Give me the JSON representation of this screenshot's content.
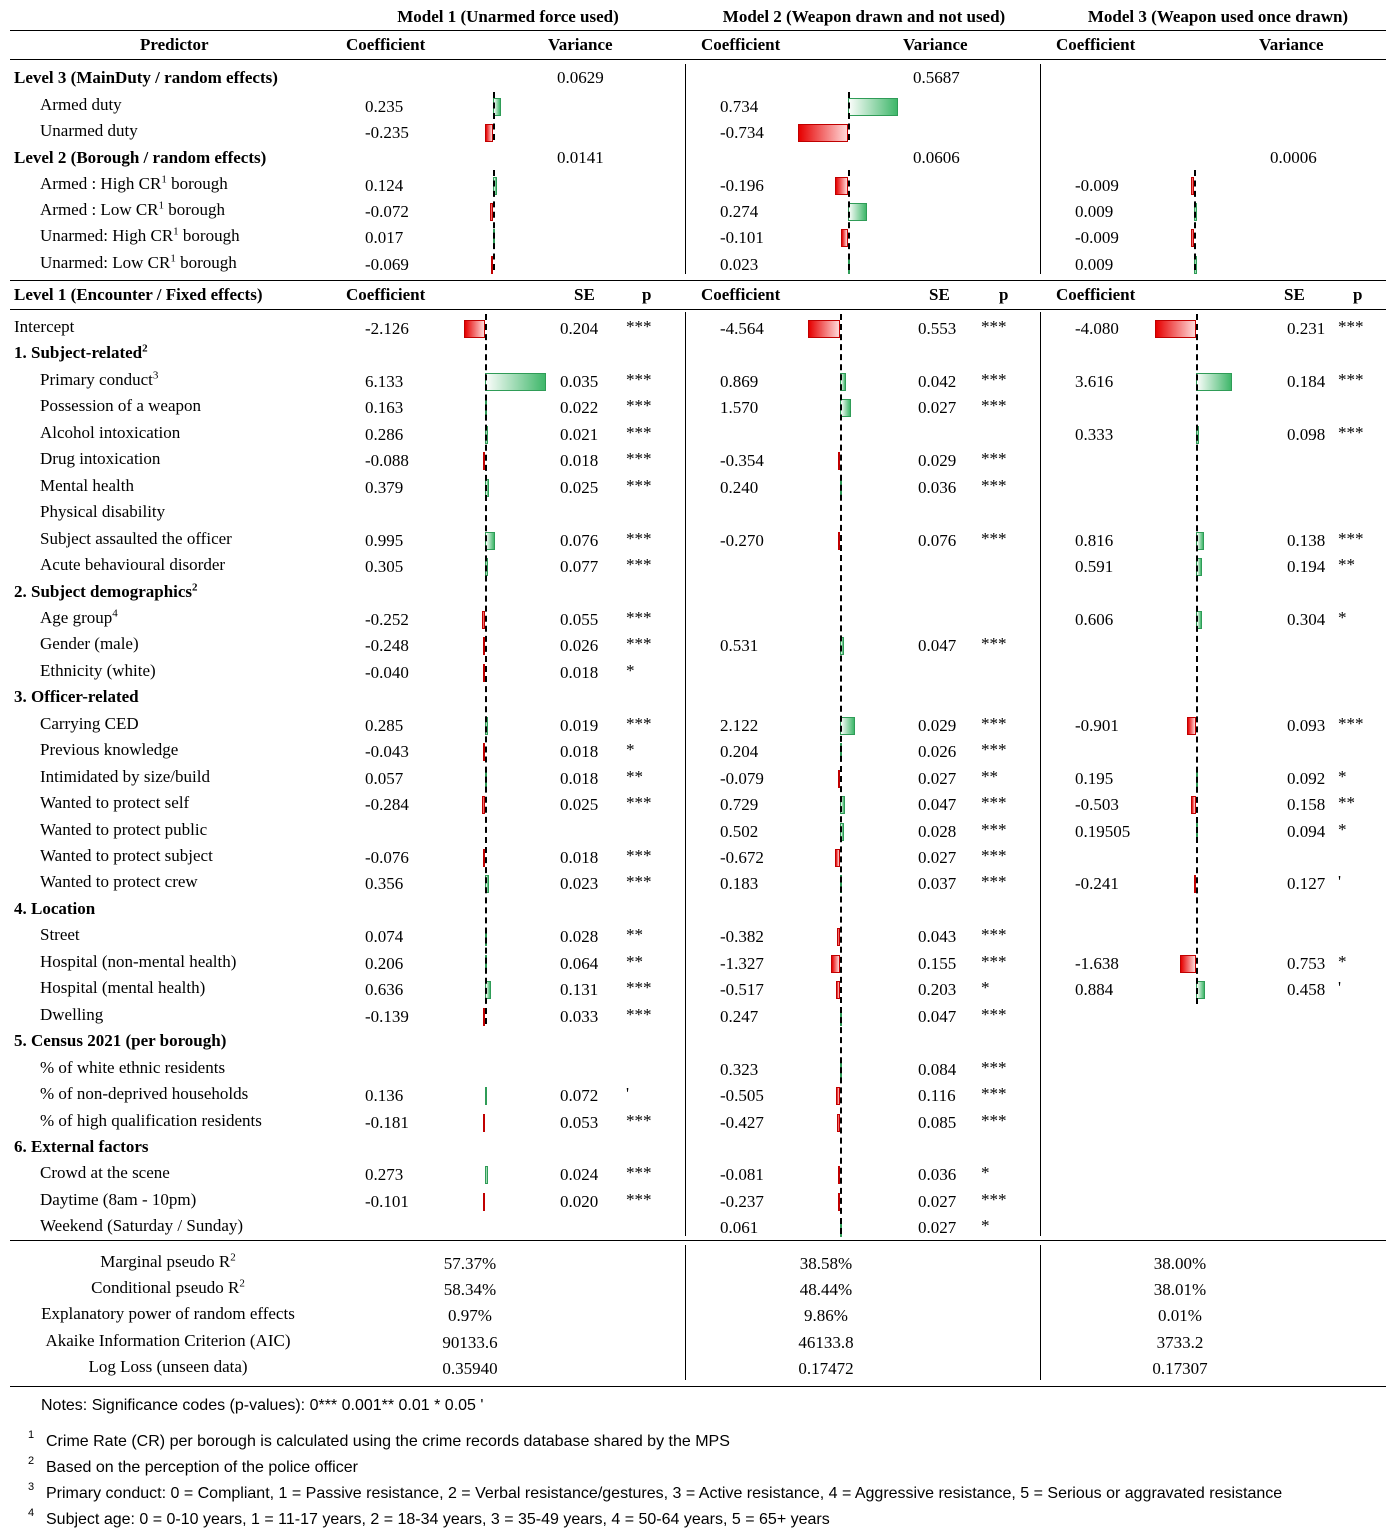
{
  "models": [
    {
      "title": "Model 1 (Unarmed force used)",
      "coef_label": "Coefficient",
      "var_label": "Variance",
      "se_label": "SE",
      "p_label": "p"
    },
    {
      "title": "Model 2 (Weapon drawn and not used)",
      "coef_label": "Coefficient",
      "var_label": "Variance",
      "se_label": "SE",
      "p_label": "p"
    },
    {
      "title": "Model 3 (Weapon used once drawn)",
      "coef_label": "Coefficient",
      "var_label": "Variance",
      "se_label": "SE",
      "p_label": "p"
    }
  ],
  "predictor_header": "Predictor",
  "level3": {
    "title": "Level 3 (MainDuty / random effects)",
    "variances": [
      "0.0629",
      "0.5687",
      ""
    ]
  },
  "level2": {
    "title": "Level 2 (Borough / random effects)",
    "variances": [
      "0.0141",
      "0.0606",
      "0.0006"
    ]
  },
  "level1": {
    "title": "Level 1 (Encounter / Fixed effects)"
  },
  "random_rows": [
    {
      "label": "Armed duty",
      "sup": "",
      "vals": [
        [
          "0.235",
          0.235
        ],
        [
          "0.734",
          0.734
        ],
        [
          "",
          null
        ]
      ]
    },
    {
      "label": "Unarmed duty",
      "sup": "",
      "vals": [
        [
          "-0.235",
          -0.235
        ],
        [
          "-0.734",
          -0.734
        ],
        [
          "",
          null
        ]
      ]
    },
    {
      "group": "Level 2 (Borough / random effects)"
    },
    {
      "label": "Armed : High CR",
      "sup": "1",
      "suffix": " borough",
      "vals": [
        [
          "0.124",
          0.124
        ],
        [
          "-0.196",
          -0.196
        ],
        [
          "-0.009",
          -0.009
        ]
      ]
    },
    {
      "label": "Armed : Low CR",
      "sup": "1",
      "suffix": " borough",
      "vals": [
        [
          "-0.072",
          -0.072
        ],
        [
          "0.274",
          0.274
        ],
        [
          "0.009",
          0.009
        ]
      ]
    },
    {
      "label": "Unarmed: High CR",
      "sup": "1",
      "suffix": " borough",
      "vals": [
        [
          "0.017",
          0.017
        ],
        [
          "-0.101",
          -0.101
        ],
        [
          "-0.009",
          -0.009
        ]
      ]
    },
    {
      "label": "Unarmed: Low CR",
      "sup": "1",
      "suffix": " borough",
      "vals": [
        [
          "-0.069",
          -0.069
        ],
        [
          "0.023",
          0.023
        ],
        [
          "0.009",
          0.009
        ]
      ]
    }
  ],
  "fixed_rows": [
    {
      "label": "Intercept",
      "indent": false,
      "m": [
        [
          "-2.126",
          "0.204",
          "***"
        ],
        [
          "-4.564",
          "0.553",
          "***"
        ],
        [
          "-4.080",
          "0.231",
          "***"
        ]
      ]
    },
    {
      "section": "1. Subject-related",
      "sup": "2"
    },
    {
      "label": "Primary conduct",
      "sup": "3",
      "m": [
        [
          "6.133",
          "0.035",
          "***"
        ],
        [
          "0.869",
          "0.042",
          "***"
        ],
        [
          "3.616",
          "0.184",
          "***"
        ]
      ]
    },
    {
      "label": "Possession of a weapon",
      "m": [
        [
          "0.163",
          "0.022",
          "***"
        ],
        [
          "1.570",
          "0.027",
          "***"
        ],
        [
          "",
          "",
          ""
        ]
      ]
    },
    {
      "label": "Alcohol intoxication",
      "m": [
        [
          "0.286",
          "0.021",
          "***"
        ],
        [
          "",
          "",
          ""
        ],
        [
          "0.333",
          "0.098",
          "***"
        ]
      ]
    },
    {
      "label": "Drug intoxication",
      "m": [
        [
          "-0.088",
          "0.018",
          "***"
        ],
        [
          "-0.354",
          "0.029",
          "***"
        ],
        [
          "",
          "",
          ""
        ]
      ]
    },
    {
      "label": "Mental health",
      "m": [
        [
          "0.379",
          "0.025",
          "***"
        ],
        [
          "0.240",
          "0.036",
          "***"
        ],
        [
          "",
          "",
          ""
        ]
      ]
    },
    {
      "label": "Physical disability",
      "m": [
        [
          "",
          "",
          ""
        ],
        [
          "",
          "",
          ""
        ],
        [
          "",
          "",
          ""
        ]
      ]
    },
    {
      "label": "Subject assaulted the officer",
      "m": [
        [
          "0.995",
          "0.076",
          "***"
        ],
        [
          "-0.270",
          "0.076",
          "***"
        ],
        [
          "0.816",
          "0.138",
          "***"
        ]
      ]
    },
    {
      "label": "Acute behavioural disorder",
      "m": [
        [
          "0.305",
          "0.077",
          "***"
        ],
        [
          "",
          "",
          ""
        ],
        [
          "0.591",
          "0.194",
          "**"
        ]
      ]
    },
    {
      "section": "2. Subject demographics",
      "sup": "2"
    },
    {
      "label": "Age group",
      "sup": "4",
      "m": [
        [
          "-0.252",
          "0.055",
          "***"
        ],
        [
          "",
          "",
          ""
        ],
        [
          "0.606",
          "0.304",
          "*"
        ]
      ]
    },
    {
      "label": "Gender (male)",
      "m": [
        [
          "-0.248",
          "0.026",
          "***"
        ],
        [
          "0.531",
          "0.047",
          "***"
        ],
        [
          "",
          "",
          ""
        ]
      ]
    },
    {
      "label": "Ethnicity (white)",
      "m": [
        [
          "-0.040",
          "0.018",
          "*"
        ],
        [
          "",
          "",
          ""
        ],
        [
          "",
          "",
          ""
        ]
      ]
    },
    {
      "section": "3. Officer-related",
      "sup": ""
    },
    {
      "label": "Carrying CED",
      "m": [
        [
          "0.285",
          "0.019",
          "***"
        ],
        [
          "2.122",
          "0.029",
          "***"
        ],
        [
          "-0.901",
          "0.093",
          "***"
        ]
      ]
    },
    {
      "label": "Previous knowledge",
      "m": [
        [
          "-0.043",
          "0.018",
          "*"
        ],
        [
          "0.204",
          "0.026",
          "***"
        ],
        [
          "",
          "",
          ""
        ]
      ]
    },
    {
      "label": "Intimidated by size/build",
      "m": [
        [
          "0.057",
          "0.018",
          "**"
        ],
        [
          "-0.079",
          "0.027",
          "**"
        ],
        [
          "0.195",
          "0.092",
          "*"
        ]
      ]
    },
    {
      "label": "Wanted to protect self",
      "m": [
        [
          "-0.284",
          "0.025",
          "***"
        ],
        [
          "0.729",
          "0.047",
          "***"
        ],
        [
          "-0.503",
          "0.158",
          "**"
        ]
      ]
    },
    {
      "label": "Wanted to protect public",
      "m": [
        [
          "",
          "",
          ""
        ],
        [
          "0.502",
          "0.028",
          "***"
        ],
        [
          "0.19505",
          "0.094",
          "*"
        ]
      ]
    },
    {
      "label": "Wanted to protect subject",
      "m": [
        [
          "-0.076",
          "0.018",
          "***"
        ],
        [
          "-0.672",
          "0.027",
          "***"
        ],
        [
          "",
          "",
          ""
        ]
      ]
    },
    {
      "label": "Wanted to protect crew",
      "m": [
        [
          "0.356",
          "0.023",
          "***"
        ],
        [
          "0.183",
          "0.037",
          "***"
        ],
        [
          "-0.241",
          "0.127",
          "'"
        ]
      ]
    },
    {
      "section": "4. Location",
      "sup": ""
    },
    {
      "label": "Street",
      "m": [
        [
          "0.074",
          "0.028",
          "**"
        ],
        [
          "-0.382",
          "0.043",
          "***"
        ],
        [
          "",
          "",
          ""
        ]
      ]
    },
    {
      "label": "Hospital (non-mental health)",
      "m": [
        [
          "0.206",
          "0.064",
          "**"
        ],
        [
          "-1.327",
          "0.155",
          "***"
        ],
        [
          "-1.638",
          "0.753",
          "*"
        ]
      ]
    },
    {
      "label": "Hospital (mental health)",
      "m": [
        [
          "0.636",
          "0.131",
          "***"
        ],
        [
          "-0.517",
          "0.203",
          "*"
        ],
        [
          "0.884",
          "0.458",
          "'"
        ]
      ]
    },
    {
      "label": "Dwelling",
      "m": [
        [
          "-0.139",
          "0.033",
          "***"
        ],
        [
          "0.247",
          "0.047",
          "***"
        ],
        [
          "",
          "",
          ""
        ]
      ]
    },
    {
      "section": "5. Census 2021 (per borough)",
      "sup": ""
    },
    {
      "label": "% of white ethnic residents",
      "m": [
        [
          "",
          "",
          ""
        ],
        [
          "0.323",
          "0.084",
          "***"
        ],
        [
          "",
          "",
          ""
        ]
      ]
    },
    {
      "label": "% of non-deprived households",
      "m": [
        [
          "0.136",
          "0.072",
          "'"
        ],
        [
          "-0.505",
          "0.116",
          "***"
        ],
        [
          "",
          "",
          ""
        ]
      ]
    },
    {
      "label": "% of high qualification residents",
      "m": [
        [
          "-0.181",
          "0.053",
          "***"
        ],
        [
          "-0.427",
          "0.085",
          "***"
        ],
        [
          "",
          "",
          ""
        ]
      ]
    },
    {
      "section": "6. External factors",
      "sup": ""
    },
    {
      "label": "Crowd at the scene",
      "m": [
        [
          "0.273",
          "0.024",
          "***"
        ],
        [
          "-0.081",
          "0.036",
          "*"
        ],
        [
          "",
          "",
          ""
        ]
      ]
    },
    {
      "label": "Daytime (8am - 10pm)",
      "m": [
        [
          "-0.101",
          "0.020",
          "***"
        ],
        [
          "-0.237",
          "0.027",
          "***"
        ],
        [
          "",
          "",
          ""
        ]
      ]
    },
    {
      "label": "Weekend (Saturday / Sunday)",
      "m": [
        [
          "",
          "",
          ""
        ],
        [
          "0.061",
          "0.027",
          "*"
        ],
        [
          "",
          "",
          ""
        ]
      ]
    }
  ],
  "stats": [
    {
      "label": "Marginal pseudo R",
      "sup": "2",
      "vals": [
        "57.37%",
        "38.58%",
        "38.00%"
      ]
    },
    {
      "label": "Conditional pseudo R",
      "sup": "2",
      "vals": [
        "58.34%",
        "48.44%",
        "38.01%"
      ]
    },
    {
      "label": "Explanatory power of random effects",
      "sup": "",
      "vals": [
        "0.97%",
        "9.86%",
        "0.01%"
      ]
    },
    {
      "label": "Akaike Information Criterion (AIC)",
      "sup": "",
      "vals": [
        "90133.6",
        "46133.8",
        "3733.2"
      ]
    },
    {
      "label": "Log Loss (unseen data)",
      "sup": "",
      "vals": [
        "0.35940",
        "0.17472",
        "0.17307"
      ]
    }
  ],
  "notes": {
    "main": "Notes: Significance codes (p-values): 0*** 0.001** 0.01 * 0.05 '",
    "items": [
      {
        "mark": "1",
        "text": "Crime Rate (CR) per borough is calculated using the crime records database shared by the MPS"
      },
      {
        "mark": "2",
        "text": "Based on the perception of the police officer"
      },
      {
        "mark": "3",
        "text": "Primary conduct: 0 = Compliant, 1 = Passive resistance, 2 = Verbal resistance/gestures, 3 = Active resistance, 4 = Aggressive resistance, 5 = Serious or aggravated resistance"
      },
      {
        "mark": "4",
        "text": "Subject age: 0 = 0-10 years, 1 = 11-17 years, 2 = 18-34 years, 3 = 35-49 years, 4 = 50-64 years, 5 = 65+ years"
      }
    ]
  },
  "colors": {
    "positive": "#3fb76a",
    "negative": "#e60000"
  }
}
